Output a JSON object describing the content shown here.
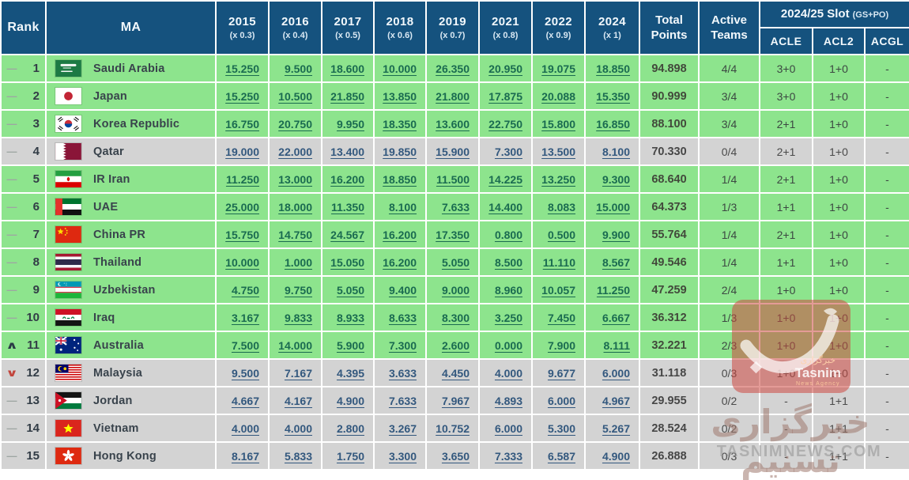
{
  "table": {
    "headers": {
      "rank": "Rank",
      "ma": "MA",
      "years": [
        {
          "label": "2015",
          "mult": "(x 0.3)"
        },
        {
          "label": "2016",
          "mult": "(x 0.4)"
        },
        {
          "label": "2017",
          "mult": "(x 0.5)"
        },
        {
          "label": "2018",
          "mult": "(x 0.6)"
        },
        {
          "label": "2019",
          "mult": "(x 0.7)"
        },
        {
          "label": "2021",
          "mult": "(x 0.8)"
        },
        {
          "label": "2022",
          "mult": "(x 0.9)"
        },
        {
          "label": "2024",
          "mult": "(x 1)"
        }
      ],
      "total_line1": "Total",
      "total_line2": "Points",
      "active_line1": "Active",
      "active_line2": "Teams",
      "slot_title": "2024/25 Slot",
      "slot_note": "(GS+PO)",
      "slot_cols": [
        "ACLE",
        "ACL2",
        "ACGL"
      ]
    },
    "rows": [
      {
        "trend": "same",
        "rank": "1",
        "country": "Saudi Arabia",
        "flag": "sa",
        "highlight": "green",
        "scores": [
          "15.250",
          "9.500",
          "18.600",
          "10.000",
          "26.350",
          "20.950",
          "19.075",
          "18.850"
        ],
        "total": "94.898",
        "active": "4/4",
        "acle": "3+0",
        "acl2": "1+0",
        "acgl": "-"
      },
      {
        "trend": "same",
        "rank": "2",
        "country": "Japan",
        "flag": "jp",
        "highlight": "green",
        "scores": [
          "15.250",
          "10.500",
          "21.850",
          "13.850",
          "21.800",
          "17.875",
          "20.088",
          "15.350"
        ],
        "total": "90.999",
        "active": "3/4",
        "acle": "3+0",
        "acl2": "1+0",
        "acgl": "-"
      },
      {
        "trend": "same",
        "rank": "3",
        "country": "Korea Republic",
        "flag": "kr",
        "highlight": "green",
        "scores": [
          "16.750",
          "20.750",
          "9.950",
          "18.350",
          "13.600",
          "22.750",
          "15.800",
          "16.850"
        ],
        "total": "88.100",
        "active": "3/4",
        "acle": "2+1",
        "acl2": "1+0",
        "acgl": "-"
      },
      {
        "trend": "same",
        "rank": "4",
        "country": "Qatar",
        "flag": "qa",
        "highlight": "gray",
        "scores": [
          "19.000",
          "22.000",
          "13.400",
          "19.850",
          "15.900",
          "7.300",
          "13.500",
          "8.100"
        ],
        "total": "70.330",
        "active": "0/4",
        "acle": "2+1",
        "acl2": "1+0",
        "acgl": "-"
      },
      {
        "trend": "same",
        "rank": "5",
        "country": "IR Iran",
        "flag": "ir",
        "highlight": "green",
        "scores": [
          "11.250",
          "13.000",
          "16.200",
          "18.850",
          "11.500",
          "14.225",
          "13.250",
          "9.300"
        ],
        "total": "68.640",
        "active": "1/4",
        "acle": "2+1",
        "acl2": "1+0",
        "acgl": "-"
      },
      {
        "trend": "same",
        "rank": "6",
        "country": "UAE",
        "flag": "ae",
        "highlight": "green",
        "scores": [
          "25.000",
          "18.000",
          "11.350",
          "8.100",
          "7.633",
          "14.400",
          "8.083",
          "15.000"
        ],
        "total": "64.373",
        "active": "1/3",
        "acle": "1+1",
        "acl2": "1+0",
        "acgl": "-"
      },
      {
        "trend": "same",
        "rank": "7",
        "country": "China PR",
        "flag": "cn",
        "highlight": "green",
        "scores": [
          "15.750",
          "14.750",
          "24.567",
          "16.200",
          "17.350",
          "0.800",
          "0.500",
          "9.900"
        ],
        "total": "55.764",
        "active": "1/4",
        "acle": "2+1",
        "acl2": "1+0",
        "acgl": "-"
      },
      {
        "trend": "same",
        "rank": "8",
        "country": "Thailand",
        "flag": "th",
        "highlight": "green",
        "scores": [
          "10.000",
          "1.000",
          "15.050",
          "16.200",
          "5.050",
          "8.500",
          "11.110",
          "8.567"
        ],
        "total": "49.546",
        "active": "1/4",
        "acle": "1+1",
        "acl2": "1+0",
        "acgl": "-"
      },
      {
        "trend": "same",
        "rank": "9",
        "country": "Uzbekistan",
        "flag": "uz",
        "highlight": "green",
        "scores": [
          "4.750",
          "9.750",
          "5.050",
          "9.400",
          "9.000",
          "8.960",
          "10.057",
          "11.250"
        ],
        "total": "47.259",
        "active": "2/4",
        "acle": "1+0",
        "acl2": "1+0",
        "acgl": "-"
      },
      {
        "trend": "same",
        "rank": "10",
        "country": "Iraq",
        "flag": "iq",
        "highlight": "green",
        "scores": [
          "3.167",
          "9.833",
          "8.933",
          "8.633",
          "8.300",
          "3.250",
          "7.450",
          "6.667"
        ],
        "total": "36.312",
        "active": "1/3",
        "acle": "1+0",
        "acl2": "1+0",
        "acgl": "-"
      },
      {
        "trend": "up",
        "rank": "11",
        "country": "Australia",
        "flag": "au",
        "highlight": "green",
        "scores": [
          "7.500",
          "14.000",
          "5.900",
          "7.300",
          "2.600",
          "0.000",
          "7.900",
          "8.111"
        ],
        "total": "32.221",
        "active": "2/3",
        "acle": "1+0",
        "acl2": "1+0",
        "acgl": "-"
      },
      {
        "trend": "down",
        "rank": "12",
        "country": "Malaysia",
        "flag": "my",
        "highlight": "gray",
        "scores": [
          "9.500",
          "7.167",
          "4.395",
          "3.633",
          "4.450",
          "4.000",
          "9.677",
          "6.000"
        ],
        "total": "31.118",
        "active": "0/3",
        "acle": "1+0",
        "acl2": "1+0",
        "acgl": "-"
      },
      {
        "trend": "same",
        "rank": "13",
        "country": "Jordan",
        "flag": "jo",
        "highlight": "gray",
        "scores": [
          "4.667",
          "4.167",
          "4.900",
          "7.633",
          "7.967",
          "4.893",
          "6.000",
          "4.967"
        ],
        "total": "29.955",
        "active": "0/2",
        "acle": "-",
        "acl2": "1+1",
        "acgl": "-"
      },
      {
        "trend": "same",
        "rank": "14",
        "country": "Vietnam",
        "flag": "vn",
        "highlight": "gray",
        "scores": [
          "4.000",
          "4.000",
          "2.800",
          "3.267",
          "10.752",
          "6.000",
          "5.300",
          "5.267"
        ],
        "total": "28.524",
        "active": "0/2",
        "acle": "-",
        "acl2": "1+1",
        "acgl": "-"
      },
      {
        "trend": "same",
        "rank": "15",
        "country": "Hong Kong",
        "flag": "hk",
        "highlight": "gray",
        "scores": [
          "8.167",
          "5.833",
          "1.750",
          "3.300",
          "3.650",
          "7.333",
          "6.587",
          "4.900"
        ],
        "total": "26.888",
        "active": "0/3",
        "acle": "-",
        "acl2": "1+1",
        "acgl": "-"
      }
    ]
  },
  "watermark": {
    "logo_fa": "خبرگزاری",
    "logo_en": "Tasnim",
    "logo_sub": "News Agency",
    "big_fa": "خبرگزاری تسنیم",
    "site": "TASNIMNEWS.COM"
  },
  "colors": {
    "header_blue": "#15527E",
    "row_green": "#8DE48D",
    "row_gray": "#D3D3D3",
    "link_green": "#1A6B50",
    "link_navy": "#33587E",
    "trend_down_red": "#C2453C",
    "watermark_red": "#CD4842"
  }
}
